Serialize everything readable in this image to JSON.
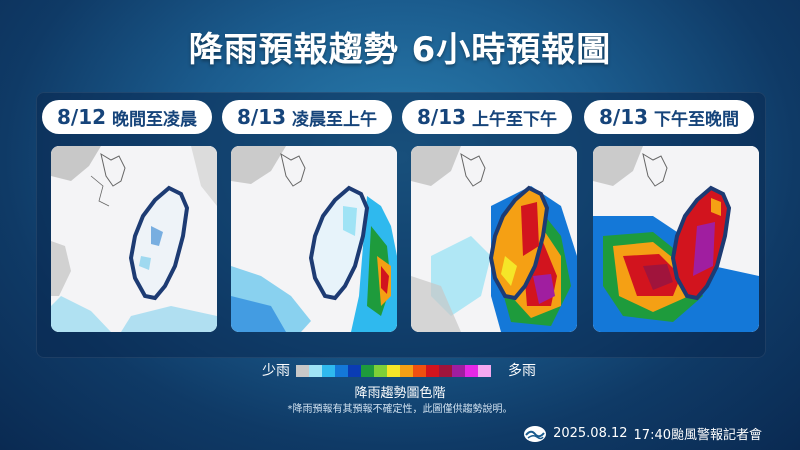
{
  "title": "降雨預報趨勢 6小時預報圖",
  "panels": [
    {
      "date": "8/12",
      "period": "晚間至凌晨"
    },
    {
      "date": "8/13",
      "period": "凌晨至上午"
    },
    {
      "date": "8/13",
      "period": "上午至下午"
    },
    {
      "date": "8/13",
      "period": "下午至晚間"
    }
  ],
  "legend": {
    "low_label": "少雨",
    "high_label": "多雨",
    "title": "降雨趨勢圖色階",
    "colors": [
      "#c8c8c8",
      "#9fe3f5",
      "#2fb9ee",
      "#1478d8",
      "#0a3cb4",
      "#1e9b3c",
      "#7ed038",
      "#f5e628",
      "#f5a014",
      "#f05010",
      "#d2141e",
      "#a0143c",
      "#a01ea0",
      "#e628e6",
      "#f5a8f0"
    ]
  },
  "disclaimer": "*降雨預報有其預報不確定性，此圖僅供趨勢說明。",
  "footer": {
    "date": "2025.08.12",
    "event": "17:40颱風警報記者會"
  },
  "colors": {
    "background": "#1b5c8e",
    "label_text": "#16447a",
    "outline": "#1d3b73"
  },
  "icons": [
    "cwa-logo-icon"
  ]
}
